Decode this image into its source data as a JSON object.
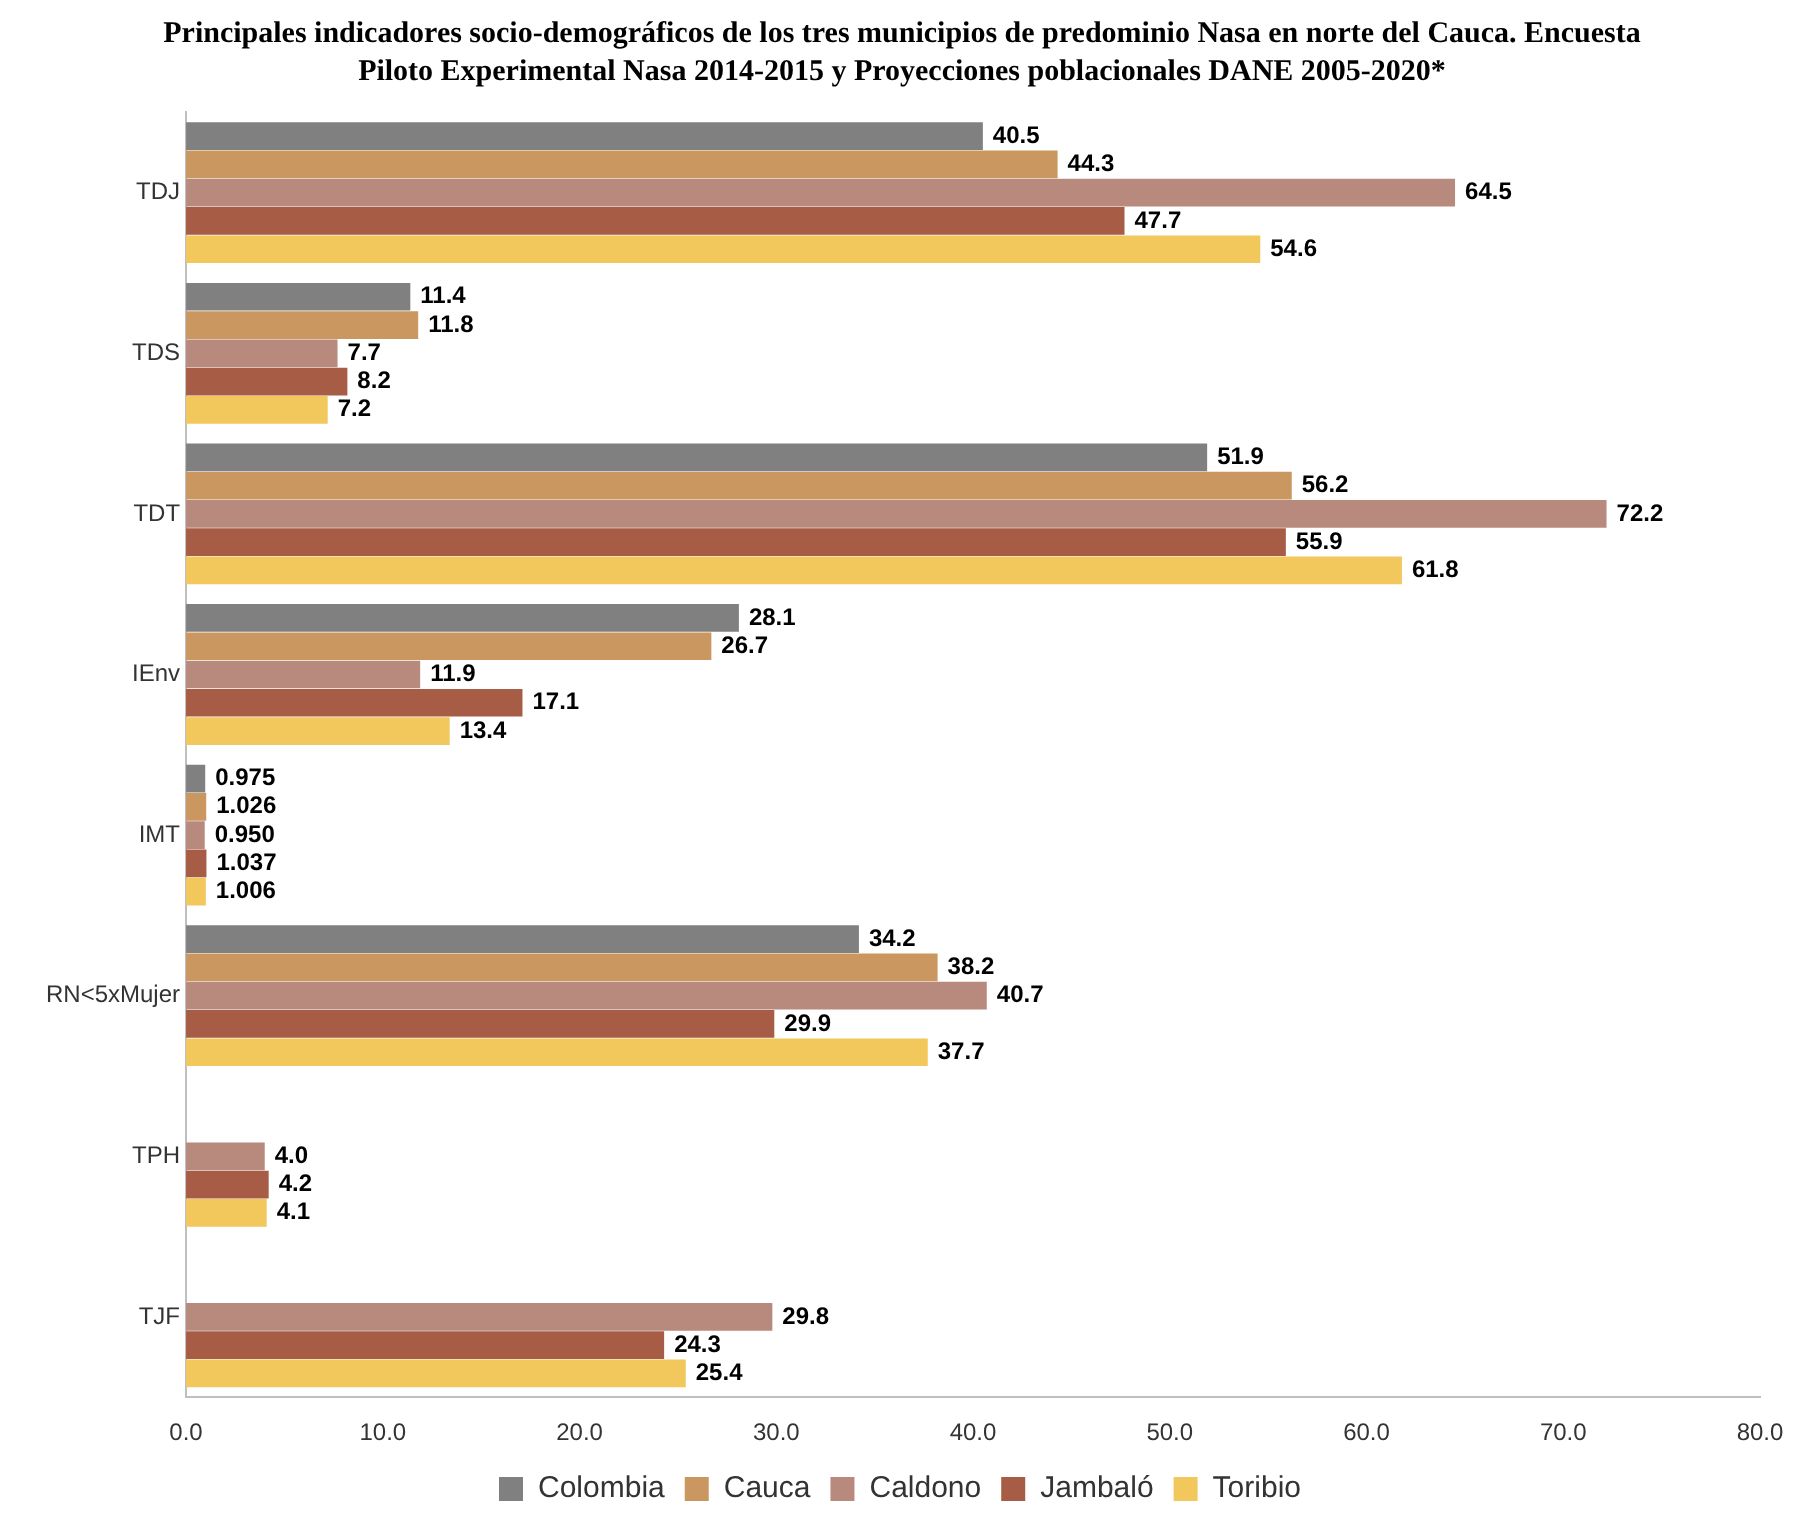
{
  "chart_data": {
    "type": "bar",
    "orientation": "horizontal",
    "title": "Principales indicadores socio-demográficos de los tres municipios de predominio Nasa en norte del Cauca. Encuesta Piloto Experimental Nasa 2014-2015 y Proyecciones poblacionales DANE 2005-2020*",
    "categories": [
      "TDJ",
      "TDS",
      "TDT",
      "IEnv",
      "IMT",
      "RN<5xMujer",
      "TPH",
      "TJF"
    ],
    "series": [
      {
        "name": "Colombia",
        "color": "#808080",
        "values": [
          40.5,
          11.4,
          51.9,
          28.1,
          0.975,
          34.2,
          null,
          null
        ],
        "value_labels": [
          "40.5",
          "11.4",
          "51.9",
          "28.1",
          "0.975",
          "34.2",
          null,
          null
        ]
      },
      {
        "name": "Cauca",
        "color": "#c9975f",
        "values": [
          44.3,
          11.8,
          56.2,
          26.7,
          1.026,
          38.2,
          null,
          null
        ],
        "value_labels": [
          "44.3",
          "11.8",
          "56.2",
          "26.7",
          "1.026",
          "38.2",
          null,
          null
        ]
      },
      {
        "name": "Caldono",
        "color": "#b88a7e",
        "values": [
          64.5,
          7.7,
          72.2,
          11.9,
          0.95,
          40.7,
          4.0,
          29.8
        ],
        "value_labels": [
          "64.5",
          "7.7",
          "72.2",
          "11.9",
          "0.950",
          "40.7",
          "4.0",
          "29.8"
        ]
      },
      {
        "name": "Jambaló",
        "color": "#a65c45",
        "values": [
          47.7,
          8.2,
          55.9,
          17.1,
          1.037,
          29.9,
          4.2,
          24.3
        ],
        "value_labels": [
          "47.7",
          "8.2",
          "55.9",
          "17.1",
          "1.037",
          "29.9",
          "4.2",
          "24.3"
        ]
      },
      {
        "name": "Toribio",
        "color": "#f2c75c",
        "values": [
          54.6,
          7.2,
          61.8,
          13.4,
          1.006,
          37.7,
          4.1,
          25.4
        ],
        "value_labels": [
          "54.6",
          "7.2",
          "61.8",
          "13.4",
          "1.006",
          "37.7",
          "4.1",
          "25.4"
        ]
      }
    ],
    "xlim": [
      0,
      80
    ],
    "xticks": [
      {
        "value": 0,
        "label": "0.0"
      },
      {
        "value": 10,
        "label": "10.0"
      },
      {
        "value": 20,
        "label": "20.0"
      },
      {
        "value": 30,
        "label": "30.0"
      },
      {
        "value": 40,
        "label": "40.0"
      },
      {
        "value": 50,
        "label": "50.0"
      },
      {
        "value": 60,
        "label": "60.0"
      },
      {
        "value": 70,
        "label": "70.0"
      },
      {
        "value": 80,
        "label": "80.0"
      }
    ],
    "grid": false,
    "legend": "bottom"
  }
}
